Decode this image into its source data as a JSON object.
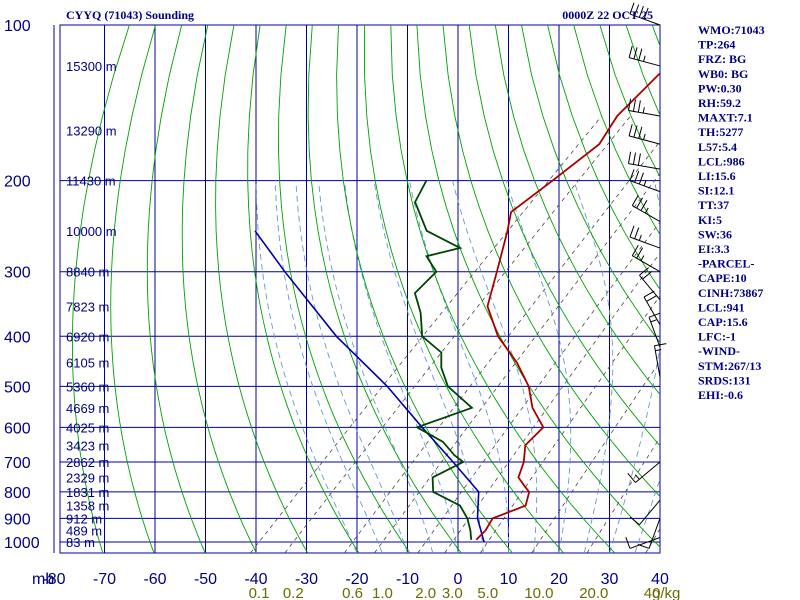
{
  "header": {
    "station_title": "CYYQ (71043) Sounding",
    "valid_time": "0000Z 22 OCT 25"
  },
  "colors": {
    "grid": "#000099",
    "dry_adiabat": "#00a000",
    "moist_adiabat": "#6699cc",
    "mixing_ratio": "#444444",
    "temperature": "#aa0000",
    "dewpoint": "#004400",
    "parcel": "#0000aa",
    "wind_barb": "#000000",
    "text": "#000080",
    "mixing_label": "#6b6b00"
  },
  "chart_data": {
    "type": "line",
    "subtype": "skew-t log-p",
    "xlabel_unit": "mb",
    "mixing_unit": "g/kg",
    "pressure_ticks": [
      100,
      200,
      300,
      400,
      500,
      600,
      700,
      800,
      900,
      1000
    ],
    "temperature_ticks": [
      -80,
      -70,
      -60,
      -50,
      -40,
      -30,
      -20,
      -10,
      0,
      10,
      20,
      30,
      40
    ],
    "temperature_tick_labels": [
      "-80",
      "-70",
      "-60",
      "-50",
      "-40",
      "-30",
      "-20",
      "-10",
      "0",
      "10",
      "20",
      "30",
      "40"
    ],
    "mixing_ratio_ticks": [
      0.1,
      0.2,
      0.6,
      1.0,
      2.0,
      3.0,
      5.0,
      10.0,
      20.0,
      40.0
    ],
    "mixing_ratio_tick_labels": [
      "0.1",
      "0.2",
      "0.6",
      "1.0",
      "2.0",
      "3.0",
      "5.0",
      "10.0",
      "20.0",
      "40"
    ],
    "height_labels": [
      {
        "p": 120,
        "label": "15300 m"
      },
      {
        "p": 160,
        "label": "13290 m"
      },
      {
        "p": 200,
        "label": "11430 m"
      },
      {
        "p": 250,
        "label": "10000 m"
      },
      {
        "p": 300,
        "label": "8840 m"
      },
      {
        "p": 350,
        "label": "7823 m"
      },
      {
        "p": 400,
        "label": "6920 m"
      },
      {
        "p": 450,
        "label": "6105 m"
      },
      {
        "p": 500,
        "label": "5360 m"
      },
      {
        "p": 550,
        "label": "4669 m"
      },
      {
        "p": 600,
        "label": "4025 m"
      },
      {
        "p": 650,
        "label": "3423 m"
      },
      {
        "p": 700,
        "label": "2862 m"
      },
      {
        "p": 750,
        "label": "2329 m"
      },
      {
        "p": 800,
        "label": "1831 m"
      },
      {
        "p": 850,
        "label": "1358 m"
      },
      {
        "p": 900,
        "label": "912 m"
      },
      {
        "p": 950,
        "label": "489 m"
      },
      {
        "p": 1000,
        "label": "83 m"
      }
    ],
    "temperature_profile": [
      {
        "p": 100,
        "t": -55
      },
      {
        "p": 150,
        "t": -55
      },
      {
        "p": 170,
        "t": -53
      },
      {
        "p": 200,
        "t": -55
      },
      {
        "p": 230,
        "t": -57
      },
      {
        "p": 250,
        "t": -54
      },
      {
        "p": 300,
        "t": -48
      },
      {
        "p": 350,
        "t": -43
      },
      {
        "p": 400,
        "t": -35
      },
      {
        "p": 450,
        "t": -26
      },
      {
        "p": 500,
        "t": -19
      },
      {
        "p": 550,
        "t": -14
      },
      {
        "p": 600,
        "t": -8
      },
      {
        "p": 650,
        "t": -8
      },
      {
        "p": 700,
        "t": -5
      },
      {
        "p": 750,
        "t": -3
      },
      {
        "p": 780,
        "t": 0
      },
      {
        "p": 800,
        "t": 2
      },
      {
        "p": 850,
        "t": 4
      },
      {
        "p": 900,
        "t": 0
      },
      {
        "p": 950,
        "t": 1
      },
      {
        "p": 990,
        "t": 1
      }
    ],
    "dewpoint_profile": [
      {
        "p": 200,
        "t": -80
      },
      {
        "p": 220,
        "t": -78
      },
      {
        "p": 250,
        "t": -70
      },
      {
        "p": 270,
        "t": -60
      },
      {
        "p": 280,
        "t": -65
      },
      {
        "p": 300,
        "t": -60
      },
      {
        "p": 330,
        "t": -60
      },
      {
        "p": 360,
        "t": -55
      },
      {
        "p": 400,
        "t": -50
      },
      {
        "p": 430,
        "t": -43
      },
      {
        "p": 460,
        "t": -40
      },
      {
        "p": 500,
        "t": -35
      },
      {
        "p": 550,
        "t": -26
      },
      {
        "p": 600,
        "t": -33
      },
      {
        "p": 640,
        "t": -25
      },
      {
        "p": 680,
        "t": -20
      },
      {
        "p": 700,
        "t": -17
      },
      {
        "p": 750,
        "t": -20
      },
      {
        "p": 800,
        "t": -17
      },
      {
        "p": 850,
        "t": -9
      },
      {
        "p": 900,
        "t": -5
      },
      {
        "p": 950,
        "t": -2
      },
      {
        "p": 990,
        "t": 0
      }
    ],
    "parcel_profile": [
      {
        "p": 250,
        "t": -104
      },
      {
        "p": 300,
        "t": -90
      },
      {
        "p": 400,
        "t": -67
      },
      {
        "p": 500,
        "t": -47
      },
      {
        "p": 600,
        "t": -32
      },
      {
        "p": 700,
        "t": -19
      },
      {
        "p": 800,
        "t": -8
      },
      {
        "p": 900,
        "t": -3
      },
      {
        "p": 1000,
        "t": 3
      }
    ],
    "wind_barbs": [
      {
        "p": 100,
        "dir": 290,
        "kt": 40
      },
      {
        "p": 120,
        "dir": 285,
        "kt": 35
      },
      {
        "p": 150,
        "dir": 280,
        "kt": 35
      },
      {
        "p": 170,
        "dir": 285,
        "kt": 35
      },
      {
        "p": 190,
        "dir": 280,
        "kt": 30
      },
      {
        "p": 210,
        "dir": 290,
        "kt": 35
      },
      {
        "p": 240,
        "dir": 300,
        "kt": 35
      },
      {
        "p": 270,
        "dir": 290,
        "kt": 25
      },
      {
        "p": 300,
        "dir": 300,
        "kt": 25
      },
      {
        "p": 340,
        "dir": 320,
        "kt": 20
      },
      {
        "p": 380,
        "dir": 330,
        "kt": 20
      },
      {
        "p": 420,
        "dir": 340,
        "kt": 15
      },
      {
        "p": 480,
        "dir": 350,
        "kt": 15
      },
      {
        "p": 700,
        "dir": 230,
        "kt": 15
      },
      {
        "p": 830,
        "dir": 220,
        "kt": 10
      },
      {
        "p": 900,
        "dir": 200,
        "kt": 10
      },
      {
        "p": 980,
        "dir": 250,
        "kt": 10
      }
    ]
  },
  "indices": [
    "WMO:71043",
    "TP:264",
    "FRZ: BG",
    "WB0: BG",
    "PW:0.30",
    "RH:59.2",
    "MAXT:7.1",
    "TH:5277",
    "L57:5.4",
    "LCL:986",
    "LI:15.6",
    "SI:12.1",
    "TT:37",
    "KI:5",
    "SW:36",
    "EI:3.3",
    "-PARCEL-",
    "CAPE:10",
    "CINH:73867",
    "LCL:941",
    "CAP:15.6",
    "LFC:-1",
    "-WIND-",
    "STM:267/13",
    "SRDS:131",
    "EHI:-0.6"
  ]
}
